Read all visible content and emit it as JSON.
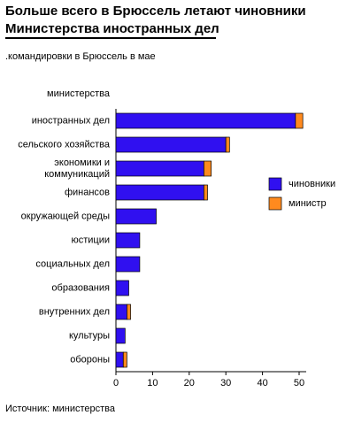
{
  "chart_data": {
    "type": "stacked_barh",
    "title": [
      "Больше всего в Брюссель летают чиновники",
      "Министерства иностранных дел"
    ],
    "subtitle": ".командировки в Брюссель в мае",
    "y_label": "министерства",
    "source": "Источник: министерства",
    "categories": [
      "иностранных дел",
      "сельского хозяйства",
      "экономики и\nкоммуникаций",
      "финансов",
      "окружающей среды",
      "юстиции",
      "социальных дел",
      "образования",
      "внутренних дел",
      "культуры",
      "обороны"
    ],
    "series": [
      {
        "name": "чиновники",
        "color": "#3010f0",
        "values": [
          49,
          30,
          24,
          24,
          11,
          6.5,
          6.5,
          3.5,
          3,
          2.5,
          2
        ]
      },
      {
        "name": "министр",
        "color": "#ff8a1e",
        "values": [
          2,
          1,
          2,
          1,
          0,
          0,
          0,
          0,
          1,
          0,
          1
        ]
      }
    ],
    "xlim": [
      0,
      50
    ],
    "xticks": [
      0,
      10,
      20,
      30,
      40,
      50
    ],
    "legend": "right"
  }
}
